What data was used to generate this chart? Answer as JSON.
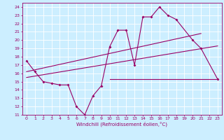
{
  "xlabel": "Windchill (Refroidissement éolien,°C)",
  "background_color": "#cceeff",
  "grid_color": "#ffffff",
  "line_color": "#990066",
  "ylim": [
    11,
    24.5
  ],
  "xlim": [
    -0.5,
    23.5
  ],
  "yticks": [
    11,
    12,
    13,
    14,
    15,
    16,
    17,
    18,
    19,
    20,
    21,
    22,
    23,
    24
  ],
  "xticks": [
    0,
    1,
    2,
    3,
    4,
    5,
    6,
    7,
    8,
    9,
    10,
    11,
    12,
    13,
    14,
    15,
    16,
    17,
    18,
    19,
    20,
    21,
    22,
    23
  ],
  "series1_x": [
    0,
    1,
    2,
    3,
    4,
    5,
    6,
    7,
    8,
    9,
    10,
    11,
    12,
    13,
    14,
    15,
    16,
    17,
    18,
    20,
    21,
    23
  ],
  "series1_y": [
    17.5,
    16.2,
    15.0,
    14.8,
    14.6,
    14.6,
    12.0,
    11.0,
    13.3,
    14.5,
    19.2,
    21.2,
    21.2,
    17.0,
    22.8,
    22.8,
    24.0,
    23.0,
    22.5,
    20.0,
    19.0,
    15.3
  ],
  "series2_x": [
    10,
    23
  ],
  "series2_y": [
    15.3,
    15.3
  ],
  "series3_x": [
    0,
    23
  ],
  "series3_y": [
    15.5,
    19.3
  ],
  "series4_x": [
    0,
    21
  ],
  "series4_y": [
    16.2,
    20.8
  ]
}
